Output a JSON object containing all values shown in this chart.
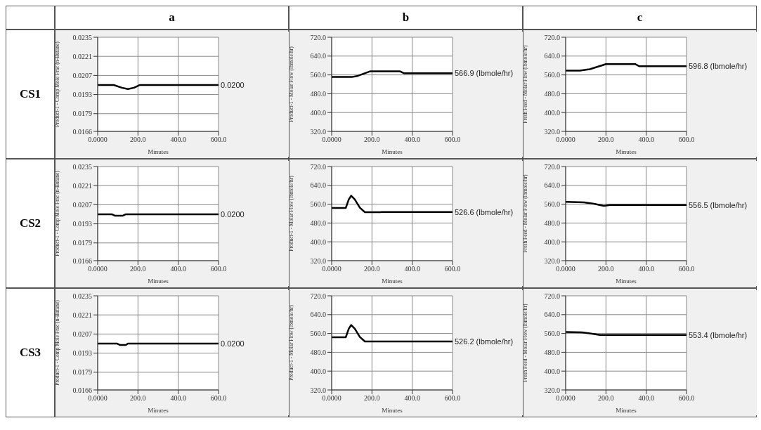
{
  "chart_data": [
    {
      "type": "line",
      "title": "a",
      "annotations": [
        "CS1"
      ],
      "xlabel": "Minutes",
      "ylabel": "Product-1 - Comp Mole Frac (n-Butane)",
      "grid": true,
      "x": [
        0,
        80,
        120,
        150,
        180,
        210,
        600
      ],
      "series": [
        {
          "color": "#000000",
          "values": [
            0.02,
            0.02,
            0.0198,
            0.0197,
            0.0198,
            0.02,
            0.02
          ],
          "value_labels": [
            null,
            null,
            null,
            null,
            null,
            null,
            "0.0200"
          ]
        }
      ],
      "xlim": [
        0,
        600
      ],
      "xticks": [
        {
          "value": 0,
          "label": "0.0000"
        },
        {
          "value": 200,
          "label": "200.0"
        },
        {
          "value": 400,
          "label": "400.0"
        },
        {
          "value": 600,
          "label": "600.0"
        }
      ],
      "ylim": [
        0.0166,
        0.0235
      ],
      "yticks": [
        0.0166,
        0.0179,
        0.0193,
        0.0207,
        0.0221,
        0.0235
      ]
    },
    {
      "type": "line",
      "title": "b",
      "xlabel": "Minutes",
      "ylabel": "Product-1 - Molar Flow (lbmole/hr)",
      "grid": true,
      "x": [
        0,
        100,
        130,
        190,
        340,
        360,
        600
      ],
      "series": [
        {
          "color": "#000000",
          "values": [
            551,
            551,
            556,
            575,
            575,
            566.9,
            566.9
          ],
          "value_labels": [
            null,
            null,
            null,
            null,
            null,
            null,
            "566.9 (lbmole/hr)"
          ]
        }
      ],
      "xlim": [
        0,
        600
      ],
      "xticks": [
        {
          "value": 0,
          "label": "0.0000"
        },
        {
          "value": 200,
          "label": "200.0"
        },
        {
          "value": 400,
          "label": "400.0"
        },
        {
          "value": 600,
          "label": "600.0"
        }
      ],
      "ylim": [
        320,
        720
      ],
      "yticks": [
        {
          "value": 320,
          "label": "320.0"
        },
        {
          "value": 400,
          "label": "400.0"
        },
        {
          "value": 480,
          "label": "480.0"
        },
        {
          "value": 560,
          "label": "560.0"
        },
        {
          "value": 640,
          "label": "640.0"
        },
        {
          "value": 720,
          "label": "720.0"
        }
      ]
    },
    {
      "type": "line",
      "title": "c",
      "xlabel": "Minutes",
      "ylabel": "Fresh Feed - Molar Flow (lbmole/hr)",
      "grid": true,
      "x": [
        0,
        70,
        120,
        200,
        345,
        365,
        600
      ],
      "series": [
        {
          "color": "#000000",
          "values": [
            578,
            578,
            584,
            606,
            606,
            596.8,
            596.8
          ],
          "value_labels": [
            null,
            null,
            null,
            null,
            null,
            null,
            "596.8 (lbmole/hr)"
          ]
        }
      ],
      "xlim": [
        0,
        600
      ],
      "xticks": [
        {
          "value": 0,
          "label": "0.0000"
        },
        {
          "value": 200,
          "label": "200.0"
        },
        {
          "value": 400,
          "label": "400.0"
        },
        {
          "value": 600,
          "label": "600.0"
        }
      ],
      "ylim": [
        320,
        720
      ],
      "yticks": [
        {
          "value": 320,
          "label": "320.0"
        },
        {
          "value": 400,
          "label": "400.0"
        },
        {
          "value": 480,
          "label": "480.0"
        },
        {
          "value": 560,
          "label": "560.0"
        },
        {
          "value": 640,
          "label": "640.0"
        },
        {
          "value": 720,
          "label": "720.0"
        }
      ]
    },
    {
      "type": "line",
      "annotations": [
        "CS2"
      ],
      "xlabel": "Minutes",
      "ylabel": "Product-1 - Comp Mole Frac (n-Butane)",
      "grid": true,
      "x": [
        0,
        70,
        85,
        125,
        140,
        600
      ],
      "series": [
        {
          "color": "#000000",
          "values": [
            0.02,
            0.02,
            0.0199,
            0.0199,
            0.02,
            0.02
          ],
          "value_labels": [
            null,
            null,
            null,
            null,
            null,
            "0.0200"
          ]
        }
      ],
      "xlim": [
        0,
        600
      ],
      "xticks": [
        {
          "value": 0,
          "label": "0.0000"
        },
        {
          "value": 200,
          "label": "200.0"
        },
        {
          "value": 400,
          "label": "400.0"
        },
        {
          "value": 600,
          "label": "600.0"
        }
      ],
      "ylim": [
        0.0166,
        0.0235
      ],
      "yticks": [
        0.0166,
        0.0179,
        0.0193,
        0.0207,
        0.0221,
        0.0235
      ]
    },
    {
      "type": "line",
      "xlabel": "Minutes",
      "ylabel": "Product-1 - Molar Flow (lbmole/hr)",
      "grid": true,
      "x": [
        0,
        70,
        85,
        97,
        115,
        140,
        165,
        240,
        250,
        600
      ],
      "series": [
        {
          "color": "#000000",
          "values": [
            544,
            544,
            580,
            596,
            580,
            545,
            526,
            526,
            526.6,
            526.6
          ],
          "value_labels": [
            null,
            null,
            null,
            null,
            null,
            null,
            null,
            null,
            null,
            "526.6 (lbmole/hr)"
          ]
        }
      ],
      "xlim": [
        0,
        600
      ],
      "xticks": [
        {
          "value": 0,
          "label": "0.0000"
        },
        {
          "value": 200,
          "label": "200.0"
        },
        {
          "value": 400,
          "label": "400.0"
        },
        {
          "value": 600,
          "label": "600.0"
        }
      ],
      "ylim": [
        320,
        720
      ],
      "yticks": [
        {
          "value": 320,
          "label": "320.0"
        },
        {
          "value": 400,
          "label": "400.0"
        },
        {
          "value": 480,
          "label": "480.0"
        },
        {
          "value": 560,
          "label": "560.0"
        },
        {
          "value": 640,
          "label": "640.0"
        },
        {
          "value": 720,
          "label": "720.0"
        }
      ]
    },
    {
      "type": "line",
      "xlabel": "Minutes",
      "ylabel": "Fresh Feed - Molar Flow (lbmole/hr)",
      "grid": true,
      "x": [
        0,
        90,
        140,
        190,
        220,
        600
      ],
      "series": [
        {
          "color": "#000000",
          "values": [
            570,
            568,
            562,
            553,
            556.5,
            556.5
          ],
          "value_labels": [
            null,
            null,
            null,
            null,
            null,
            "556.5 (lbmole/hr)"
          ]
        }
      ],
      "xlim": [
        0,
        600
      ],
      "xticks": [
        {
          "value": 0,
          "label": "0.0000"
        },
        {
          "value": 200,
          "label": "200.0"
        },
        {
          "value": 400,
          "label": "400.0"
        },
        {
          "value": 600,
          "label": "600.0"
        }
      ],
      "ylim": [
        320,
        720
      ],
      "yticks": [
        {
          "value": 320,
          "label": "320.0"
        },
        {
          "value": 400,
          "label": "400.0"
        },
        {
          "value": 480,
          "label": "480.0"
        },
        {
          "value": 560,
          "label": "560.0"
        },
        {
          "value": 640,
          "label": "640.0"
        },
        {
          "value": 720,
          "label": "720.0"
        }
      ]
    },
    {
      "type": "line",
      "annotations": [
        "CS3"
      ],
      "xlabel": "Minutes",
      "ylabel": "Product-1 - Comp Mole Frac (n-Butane)",
      "grid": true,
      "x": [
        0,
        95,
        110,
        140,
        150,
        600
      ],
      "series": [
        {
          "color": "#000000",
          "values": [
            0.02,
            0.02,
            0.0199,
            0.0199,
            0.02,
            0.02
          ],
          "value_labels": [
            null,
            null,
            null,
            null,
            null,
            "0.0200"
          ]
        }
      ],
      "xlim": [
        0,
        600
      ],
      "xticks": [
        {
          "value": 0,
          "label": "0.0000"
        },
        {
          "value": 200,
          "label": "200.0"
        },
        {
          "value": 400,
          "label": "400.0"
        },
        {
          "value": 600,
          "label": "600.0"
        }
      ],
      "ylim": [
        0.0166,
        0.0235
      ],
      "yticks": [
        0.0166,
        0.0179,
        0.0193,
        0.0207,
        0.0221,
        0.0235
      ]
    },
    {
      "type": "line",
      "xlabel": "Minutes",
      "ylabel": "Product-1 - Molar Flow (lbmole/hr)",
      "grid": true,
      "x": [
        0,
        70,
        85,
        97,
        115,
        140,
        165,
        240,
        250,
        600
      ],
      "series": [
        {
          "color": "#000000",
          "values": [
            544,
            544,
            580,
            596,
            580,
            545,
            526,
            526,
            526.2,
            526.2
          ],
          "value_labels": [
            null,
            null,
            null,
            null,
            null,
            null,
            null,
            null,
            null,
            "526.2 (lbmole/hr)"
          ]
        }
      ],
      "xlim": [
        0,
        600
      ],
      "xticks": [
        {
          "value": 0,
          "label": "0.0000"
        },
        {
          "value": 200,
          "label": "200.0"
        },
        {
          "value": 400,
          "label": "400.0"
        },
        {
          "value": 600,
          "label": "600.0"
        }
      ],
      "ylim": [
        320,
        720
      ],
      "yticks": [
        {
          "value": 320,
          "label": "320.0"
        },
        {
          "value": 400,
          "label": "400.0"
        },
        {
          "value": 480,
          "label": "480.0"
        },
        {
          "value": 560,
          "label": "560.0"
        },
        {
          "value": 640,
          "label": "640.0"
        },
        {
          "value": 720,
          "label": "720.0"
        }
      ]
    },
    {
      "type": "line",
      "xlabel": "Minutes",
      "ylabel": "Fresh Feed - Molar Flow (lbmole/hr)",
      "grid": true,
      "x": [
        0,
        80,
        120,
        170,
        600
      ],
      "series": [
        {
          "color": "#000000",
          "values": [
            566,
            565,
            560,
            553.4,
            553.4
          ],
          "value_labels": [
            null,
            null,
            null,
            null,
            "553.4 (lbmole/hr)"
          ]
        }
      ],
      "xlim": [
        0,
        600
      ],
      "xticks": [
        {
          "value": 0,
          "label": "0.0000"
        },
        {
          "value": 200,
          "label": "200.0"
        },
        {
          "value": 400,
          "label": "400.0"
        },
        {
          "value": 600,
          "label": "600.0"
        }
      ],
      "ylim": [
        320,
        720
      ],
      "yticks": [
        {
          "value": 320,
          "label": "320.0"
        },
        {
          "value": 400,
          "label": "400.0"
        },
        {
          "value": 480,
          "label": "480.0"
        },
        {
          "value": 560,
          "label": "560.0"
        },
        {
          "value": 640,
          "label": "640.0"
        },
        {
          "value": 720,
          "label": "720.0"
        }
      ]
    }
  ]
}
